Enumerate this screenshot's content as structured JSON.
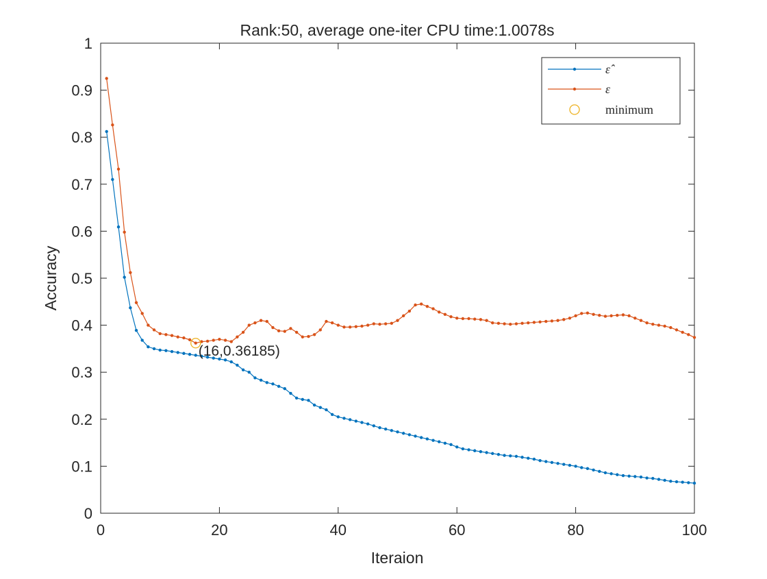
{
  "chart_data": {
    "type": "line",
    "title": "Rank:50,  average one-iter CPU time:1.0078s",
    "xlabel": "Iteraion",
    "ylabel": "Accuracy",
    "xlim": [
      0,
      100
    ],
    "ylim": [
      0,
      1
    ],
    "xticks": [
      "0",
      "20",
      "40",
      "60",
      "80",
      "100"
    ],
    "yticks": [
      "0",
      "0.1",
      "0.2",
      "0.3",
      "0.4",
      "0.5",
      "0.6",
      "0.7",
      "0.8",
      "0.9",
      "1"
    ],
    "grid": false,
    "legend_position": "top-right",
    "x": [
      1,
      2,
      3,
      4,
      5,
      6,
      7,
      8,
      9,
      10,
      11,
      12,
      13,
      14,
      15,
      16,
      17,
      18,
      19,
      20,
      21,
      22,
      23,
      24,
      25,
      26,
      27,
      28,
      29,
      30,
      31,
      32,
      33,
      34,
      35,
      36,
      37,
      38,
      39,
      40,
      41,
      42,
      43,
      44,
      45,
      46,
      47,
      48,
      49,
      50,
      51,
      52,
      53,
      54,
      55,
      56,
      57,
      58,
      59,
      60,
      61,
      62,
      63,
      64,
      65,
      66,
      67,
      68,
      69,
      70,
      71,
      72,
      73,
      74,
      75,
      76,
      77,
      78,
      79,
      80,
      81,
      82,
      83,
      84,
      85,
      86,
      87,
      88,
      89,
      90,
      91,
      92,
      93,
      94,
      95,
      96,
      97,
      98,
      99,
      100
    ],
    "series": [
      {
        "name": "ε̂",
        "color": "#0072BD",
        "values": [
          0.812,
          0.71,
          0.609,
          0.502,
          0.437,
          0.389,
          0.368,
          0.354,
          0.35,
          0.347,
          0.346,
          0.344,
          0.342,
          0.34,
          0.338,
          0.336,
          0.334,
          0.332,
          0.33,
          0.328,
          0.326,
          0.322,
          0.315,
          0.305,
          0.3,
          0.288,
          0.283,
          0.278,
          0.275,
          0.27,
          0.265,
          0.255,
          0.245,
          0.242,
          0.24,
          0.23,
          0.225,
          0.22,
          0.21,
          0.205,
          0.202,
          0.199,
          0.196,
          0.193,
          0.19,
          0.186,
          0.182,
          0.179,
          0.176,
          0.173,
          0.17,
          0.167,
          0.164,
          0.161,
          0.158,
          0.155,
          0.152,
          0.149,
          0.146,
          0.141,
          0.137,
          0.135,
          0.133,
          0.131,
          0.129,
          0.127,
          0.125,
          0.123,
          0.122,
          0.121,
          0.119,
          0.117,
          0.115,
          0.112,
          0.11,
          0.108,
          0.106,
          0.104,
          0.102,
          0.1,
          0.097,
          0.095,
          0.092,
          0.089,
          0.086,
          0.084,
          0.082,
          0.08,
          0.079,
          0.078,
          0.077,
          0.075,
          0.074,
          0.072,
          0.07,
          0.068,
          0.067,
          0.066,
          0.065,
          0.064
        ]
      },
      {
        "name": "ε",
        "color": "#D95319",
        "values": [
          0.925,
          0.826,
          0.732,
          0.598,
          0.512,
          0.448,
          0.425,
          0.4,
          0.39,
          0.382,
          0.38,
          0.378,
          0.375,
          0.373,
          0.369,
          0.362,
          0.365,
          0.366,
          0.368,
          0.37,
          0.368,
          0.365,
          0.375,
          0.385,
          0.4,
          0.405,
          0.41,
          0.408,
          0.395,
          0.388,
          0.387,
          0.393,
          0.385,
          0.375,
          0.376,
          0.38,
          0.39,
          0.408,
          0.405,
          0.4,
          0.396,
          0.396,
          0.397,
          0.398,
          0.4,
          0.403,
          0.402,
          0.403,
          0.404,
          0.41,
          0.42,
          0.43,
          0.443,
          0.445,
          0.44,
          0.435,
          0.428,
          0.423,
          0.418,
          0.415,
          0.414,
          0.414,
          0.413,
          0.412,
          0.41,
          0.405,
          0.404,
          0.403,
          0.402,
          0.403,
          0.404,
          0.405,
          0.406,
          0.407,
          0.408,
          0.409,
          0.41,
          0.412,
          0.415,
          0.42,
          0.425,
          0.426,
          0.423,
          0.421,
          0.419,
          0.42,
          0.421,
          0.422,
          0.42,
          0.415,
          0.41,
          0.405,
          0.402,
          0.4,
          0.398,
          0.395,
          0.39,
          0.385,
          0.38,
          0.374
        ]
      }
    ],
    "marker": {
      "name": "minimum",
      "x": 16,
      "y": 0.36185,
      "label": "(16,0.36185)",
      "color": "#EDB120"
    }
  }
}
